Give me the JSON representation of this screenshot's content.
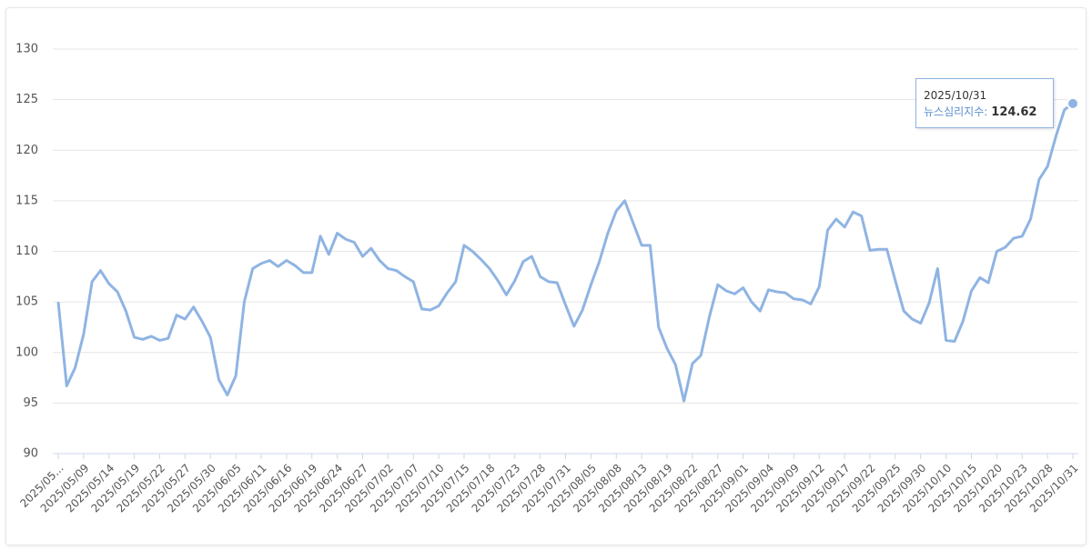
{
  "chart_data": {
    "type": "line",
    "categories": [
      "2025/05...",
      null,
      null,
      "2025/05/09",
      null,
      null,
      "2025/05/14",
      null,
      null,
      "2025/05/19",
      null,
      null,
      "2025/05/22",
      null,
      null,
      "2025/05/27",
      null,
      null,
      "2025/05/30",
      null,
      null,
      "2025/06/05",
      null,
      null,
      "2025/06/11",
      null,
      null,
      "2025/06/16",
      null,
      null,
      "2025/06/19",
      null,
      null,
      "2025/06/24",
      null,
      null,
      "2025/06/27",
      null,
      null,
      "2025/07/02",
      null,
      null,
      "2025/07/07",
      null,
      null,
      "2025/07/10",
      null,
      null,
      "2025/07/15",
      null,
      null,
      "2025/07/18",
      null,
      null,
      "2025/07/23",
      null,
      null,
      "2025/07/28",
      null,
      null,
      "2025/07/31",
      null,
      null,
      "2025/08/05",
      null,
      null,
      "2025/08/08",
      null,
      null,
      "2025/08/13",
      null,
      null,
      "2025/08/19",
      null,
      null,
      "2025/08/22",
      null,
      null,
      "2025/08/27",
      null,
      null,
      "2025/09/01",
      null,
      null,
      "2025/09/04",
      null,
      null,
      "2025/09/09",
      null,
      null,
      "2025/09/12",
      null,
      null,
      "2025/09/17",
      null,
      null,
      "2025/09/22",
      null,
      null,
      "2025/09/25",
      null,
      null,
      "2025/09/30",
      null,
      null,
      "2025/10/10",
      null,
      null,
      "2025/10/15",
      null,
      null,
      "2025/10/20",
      null,
      null,
      "2025/10/23",
      null,
      null,
      "2025/10/28",
      null,
      null,
      "2025/10/31"
    ],
    "series": [
      {
        "name": "뉴스심리지수",
        "color": "#8fb4e3",
        "values": [
          105,
          96.7,
          98.5,
          101.8,
          107,
          108.1,
          106.8,
          106,
          104.1,
          101.5,
          101.3,
          101.6,
          101.2,
          101.4,
          103.7,
          103.3,
          104.5,
          103.1,
          101.5,
          97.3,
          95.8,
          97.7,
          105,
          108.3,
          108.8,
          109.1,
          108.5,
          109.1,
          108.6,
          107.9,
          107.9,
          111.5,
          109.7,
          111.8,
          111.2,
          110.9,
          109.5,
          110.3,
          109.1,
          108.3,
          108.1,
          107.5,
          107,
          104.3,
          104.2,
          104.6,
          105.9,
          107,
          110.6,
          110,
          109.2,
          108.3,
          107.1,
          105.7,
          107.1,
          109,
          109.5,
          107.5,
          107,
          106.9,
          104.7,
          102.6,
          104.2,
          106.7,
          109,
          111.8,
          114,
          115,
          112.8,
          110.6,
          110.6,
          102.5,
          100.4,
          98.8,
          95.2,
          98.9,
          99.7,
          103.5,
          106.7,
          106.1,
          105.8,
          106.4,
          105,
          104.1,
          106.2,
          106,
          105.9,
          105.3,
          105.2,
          104.8,
          106.5,
          112.1,
          113.2,
          112.4,
          113.9,
          113.5,
          110.1,
          110.2,
          110.2,
          107.1,
          104.1,
          103.3,
          102.9,
          104.9,
          108.3,
          101.2,
          101.1,
          103.1,
          106.1,
          107.4,
          106.9,
          110,
          110.4,
          111.3,
          111.5,
          113.2,
          117.1,
          118.4,
          121.4,
          124,
          124.62
        ]
      }
    ],
    "ylim": [
      90,
      130
    ],
    "yticks": [
      90,
      95,
      100,
      105,
      110,
      115,
      120,
      125,
      130
    ],
    "grid": true,
    "tooltip_index": 120
  }
}
